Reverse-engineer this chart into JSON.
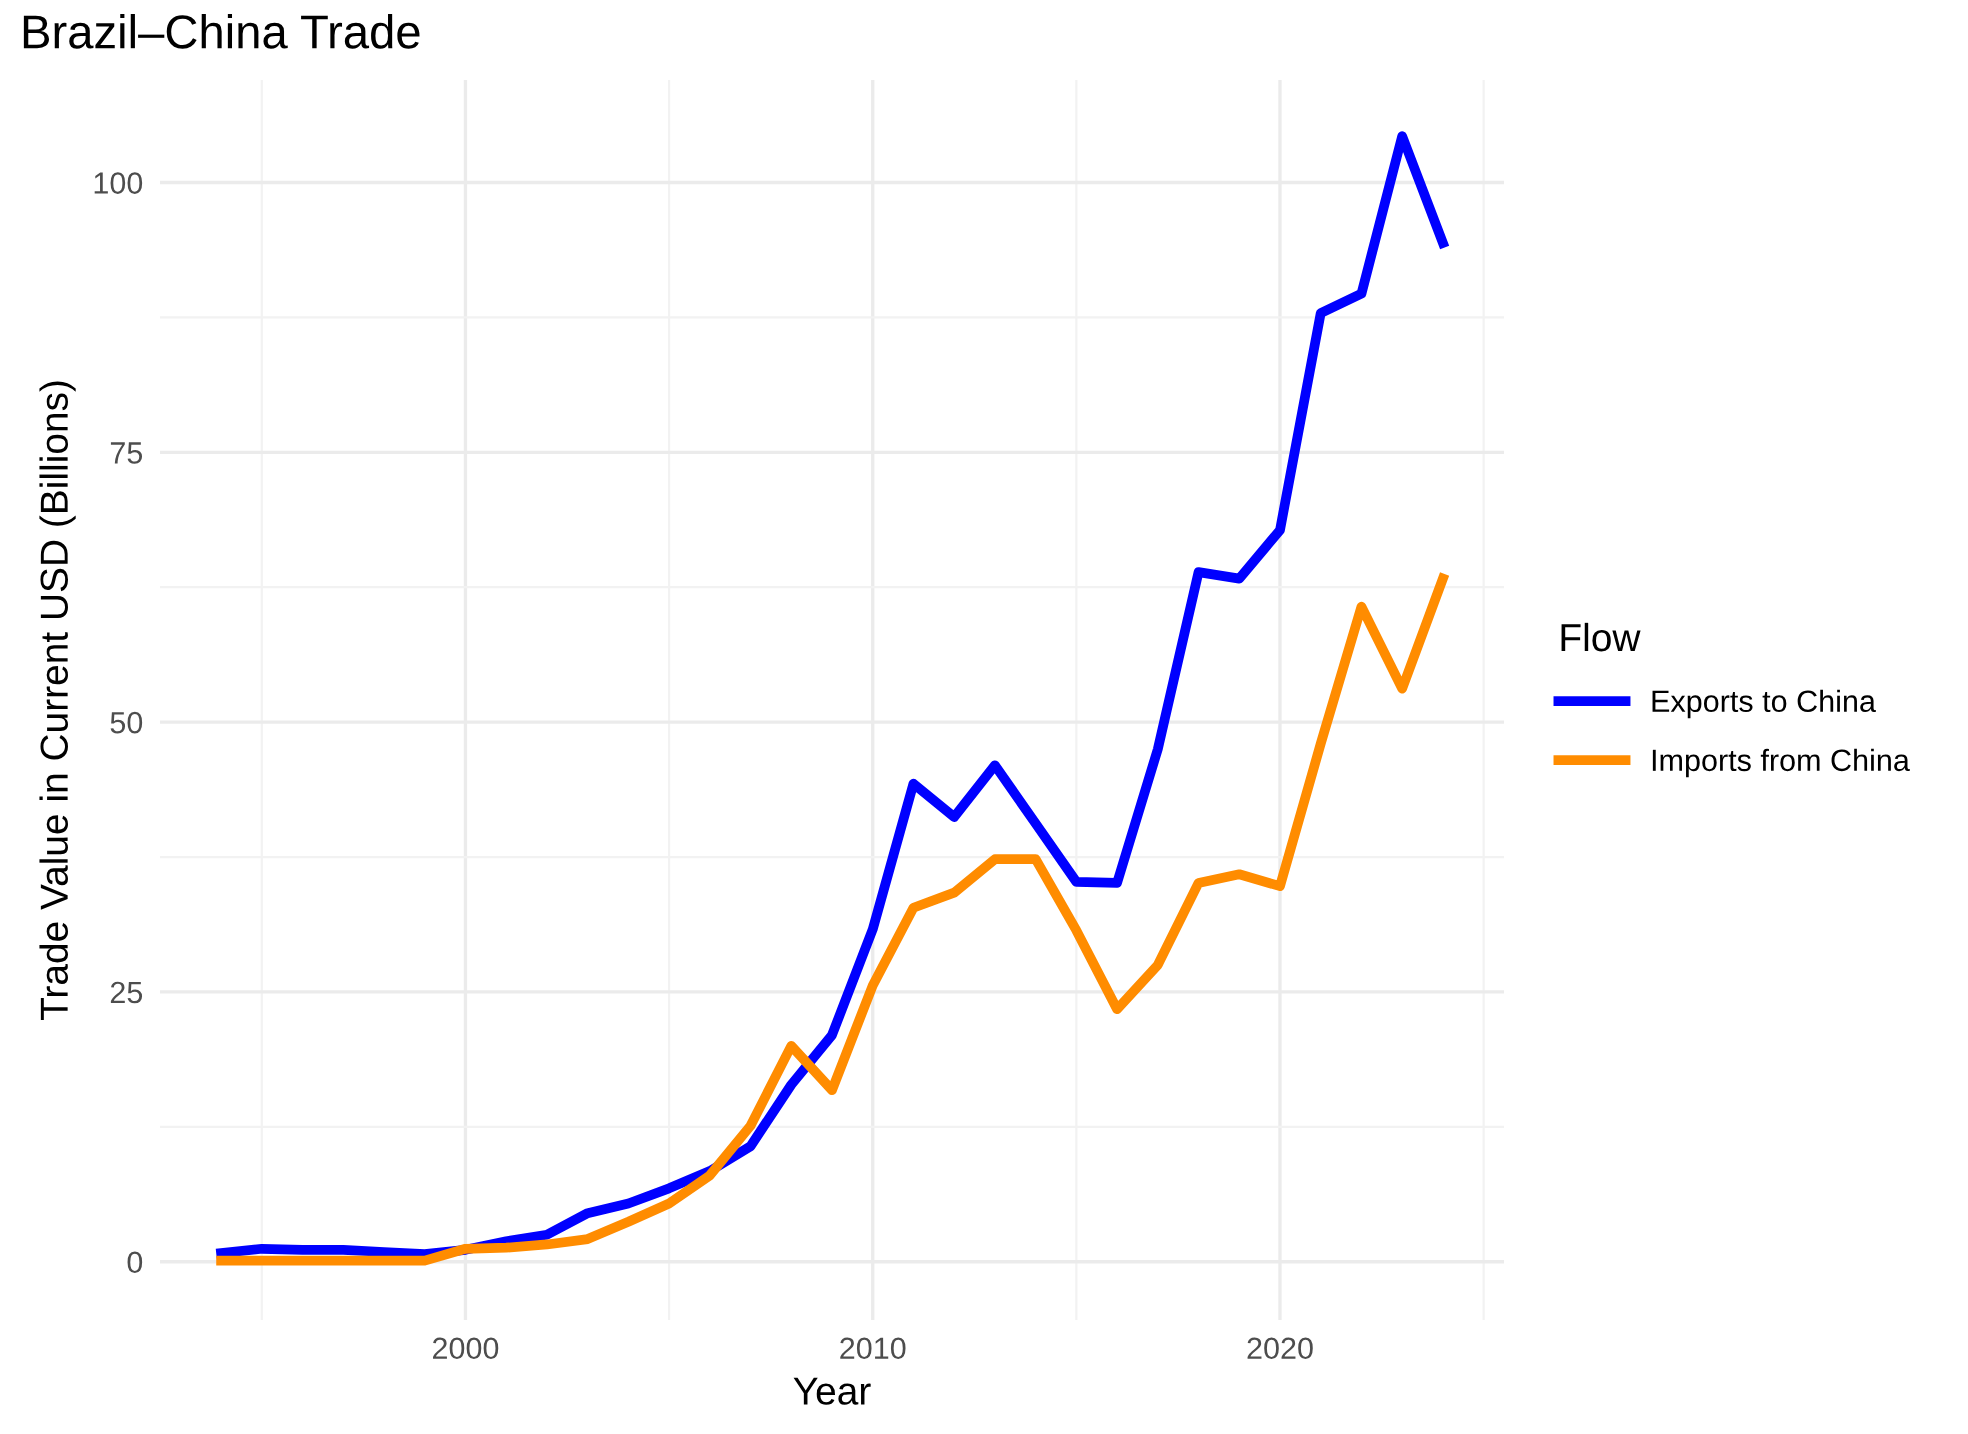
{
  "chart_data": {
    "type": "line",
    "title": "Brazil–China Trade",
    "xlabel": "Year",
    "ylabel": "Trade Value in Current USD (Billions)",
    "legend_title": "Flow",
    "x": [
      1994,
      1995,
      1996,
      1997,
      1998,
      1999,
      2000,
      2001,
      2002,
      2003,
      2004,
      2005,
      2006,
      2007,
      2008,
      2009,
      2010,
      2011,
      2012,
      2013,
      2014,
      2015,
      2016,
      2017,
      2018,
      2019,
      2020,
      2021,
      2022,
      2023,
      2024
    ],
    "series": [
      {
        "name": "Exports to China",
        "color": "#0000ff",
        "values": [
          0.8,
          1.2,
          1.1,
          1.1,
          0.9,
          0.7,
          1.1,
          1.9,
          2.5,
          4.5,
          5.4,
          6.8,
          8.4,
          10.7,
          16.4,
          21.0,
          30.8,
          44.3,
          41.2,
          46.0,
          40.6,
          35.2,
          35.1,
          47.5,
          63.9,
          63.3,
          67.8,
          87.9,
          89.7,
          104.3,
          94.4
        ]
      },
      {
        "name": "Imports from China",
        "color": "#ff8c00",
        "values": [
          0.1,
          0.1,
          0.1,
          0.1,
          0.1,
          0.1,
          1.2,
          1.3,
          1.6,
          2.1,
          3.7,
          5.4,
          8.0,
          12.6,
          20.0,
          15.9,
          25.6,
          32.8,
          34.2,
          37.3,
          37.3,
          30.7,
          23.4,
          27.5,
          35.1,
          35.9,
          34.8,
          48.0,
          60.7,
          53.1,
          63.3
        ]
      }
    ],
    "xlim": [
      1992.5,
      2025.5
    ],
    "ylim": [
      -5.4,
      109.5
    ],
    "xticks": [
      2000,
      2010,
      2020
    ],
    "yticks": [
      0,
      25,
      50,
      75,
      100
    ],
    "grid": true,
    "legend": "right",
    "marker": "none",
    "line_style": "solid"
  }
}
